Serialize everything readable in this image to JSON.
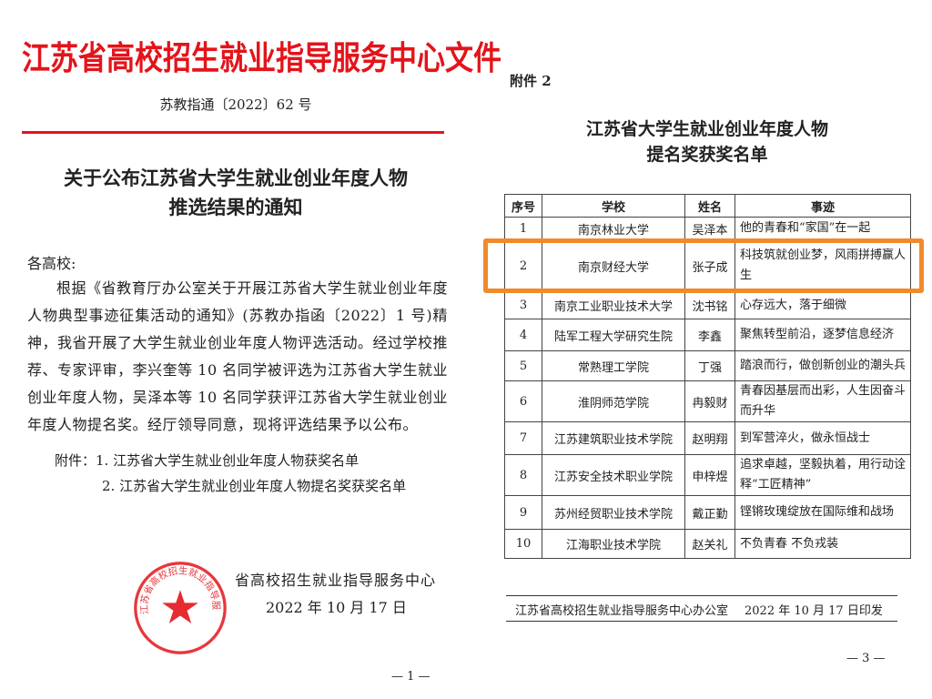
{
  "left_page": {
    "header_title": "江苏省高校招生就业指导服务中心文件",
    "doc_number": "苏教指通〔2022〕62 号",
    "notice_title_line1": "关于公布江苏省大学生就业创业年度人物",
    "notice_title_line2": "推选结果的通知",
    "salutation": "各高校:",
    "body": "根据《省教育厅办公室关于开展江苏省大学生就业创业年度人物典型事迹征集活动的通知》(苏教办指函〔2022〕1 号)精神，我省开展了大学生就业创业年度人物评选活动。经过学校推荐、专家评审，李兴奎等 10 名同学被评选为江苏省大学生就业创业年度人物，吴泽本等 10 名同学获评江苏省大学生就业创业年度人物提名奖。经厅领导同意，现将评选结果予以公布。",
    "attachments": [
      "附件：1.  江苏省大学生就业创业年度人物获奖名单",
      "2.  江苏省大学生就业创业年度人物提名奖获奖名单"
    ],
    "issuer": "省高校招生就业指导服务中心",
    "date": "2022 年 10 月 17 日",
    "seal_text": "江苏省高校招生就业指导服务中心",
    "page_number": "— 1 —",
    "colors": {
      "red": "#e3141b"
    }
  },
  "right_page": {
    "annex_label": "附件 2",
    "title_line1": "江苏省大学生就业创业年度人物",
    "title_line2": "提名奖获奖名单",
    "table": {
      "headers": [
        "序号",
        "学校",
        "姓名",
        "事迹"
      ],
      "rows": [
        {
          "no": "1",
          "school": "南京林业大学",
          "name": "吴泽本",
          "deed": "他的青春和“家国”在一起"
        },
        {
          "no": "2",
          "school": "南京财经大学",
          "name": "张子成",
          "deed": "科技筑就创业梦，风雨拼搏赢人生",
          "highlighted": true
        },
        {
          "no": "3",
          "school": "南京工业职业技术大学",
          "name": "沈书铭",
          "deed": "心存远大，落于细微"
        },
        {
          "no": "4",
          "school": "陆军工程大学研究生院",
          "name": "李鑫",
          "deed": "聚焦转型前沿，逐梦信息经济"
        },
        {
          "no": "5",
          "school": "常熟理工学院",
          "name": "丁强",
          "deed": "踏浪而行，做创新创业的潮头兵"
        },
        {
          "no": "6",
          "school": "淮阴师范学院",
          "name": "冉毅财",
          "deed": "青春因基层而出彩，人生因奋斗而升华"
        },
        {
          "no": "7",
          "school": "江苏建筑职业技术学院",
          "name": "赵明翔",
          "deed": "到军营淬火，做永恒战士"
        },
        {
          "no": "8",
          "school": "江苏安全技术职业学院",
          "name": "申梓煜",
          "deed": "追求卓越，坚毅执着，用行动诠释“工匠精神”"
        },
        {
          "no": "9",
          "school": "苏州经贸职业技术学院",
          "name": "戴正勤",
          "deed": "铿锵玫瑰绽放在国际维和战场"
        },
        {
          "no": "10",
          "school": "江海职业技术学院",
          "name": "赵关礼",
          "deed": "不负青春 不负戎装"
        }
      ]
    },
    "footer_office": "江苏省高校招生就业指导服务中心办公室",
    "footer_date": "2022 年 10 月 17 日印发",
    "page_number": "— 3 —",
    "colors": {
      "highlight": "#f08a2b"
    }
  }
}
